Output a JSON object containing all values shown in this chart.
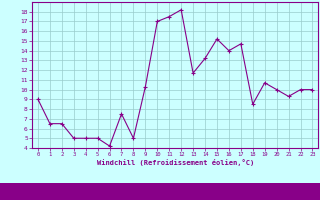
{
  "x": [
    0,
    1,
    2,
    3,
    4,
    5,
    6,
    7,
    8,
    9,
    10,
    11,
    12,
    13,
    14,
    15,
    16,
    17,
    18,
    19,
    20,
    21,
    22,
    23
  ],
  "y": [
    9.0,
    6.5,
    6.5,
    5.0,
    5.0,
    5.0,
    4.2,
    7.5,
    5.0,
    10.3,
    17.0,
    17.5,
    18.2,
    11.7,
    13.2,
    15.2,
    14.0,
    14.7,
    8.5,
    10.7,
    10.0,
    9.3,
    10.0,
    10.0
  ],
  "line_color": "#880088",
  "marker": "+",
  "marker_color": "#880088",
  "bg_color": "#ccffff",
  "grid_color": "#99cccc",
  "xlabel": "Windchill (Refroidissement éolien,°C)",
  "xlabel_color": "#880088",
  "tick_color": "#880088",
  "ylim": [
    4,
    19
  ],
  "xlim": [
    -0.5,
    23.5
  ],
  "yticks": [
    4,
    5,
    6,
    7,
    8,
    9,
    10,
    11,
    12,
    13,
    14,
    15,
    16,
    17,
    18
  ],
  "xticks": [
    0,
    1,
    2,
    3,
    4,
    5,
    6,
    7,
    8,
    9,
    10,
    11,
    12,
    13,
    14,
    15,
    16,
    17,
    18,
    19,
    20,
    21,
    22,
    23
  ],
  "bottom_bar_color": "#880088",
  "bottom_bar_height": 0.085,
  "spine_color": "#880088"
}
